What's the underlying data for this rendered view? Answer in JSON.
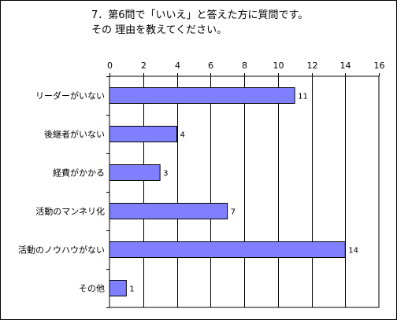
{
  "chart_data": {
    "type": "bar",
    "orientation": "horizontal",
    "title": [
      "7．第6問で「いいえ」と答えた方に質問です。",
      "その 理由を教えてください。"
    ],
    "categories": [
      "リーダーがいない",
      "後継者がいない",
      "経費がかかる",
      "活動のマンネリ化",
      "活動のノウハウがない",
      "その他"
    ],
    "values": [
      11,
      4,
      3,
      7,
      14,
      1
    ],
    "xlim": [
      0,
      16
    ],
    "xticks": [
      0,
      2,
      4,
      6,
      8,
      10,
      12,
      14,
      16
    ],
    "x_axis_position": "top",
    "grid": true,
    "bar_color": "#8080ff",
    "bar_edge_color": "#000000",
    "data_labels": true,
    "legend": "none"
  }
}
